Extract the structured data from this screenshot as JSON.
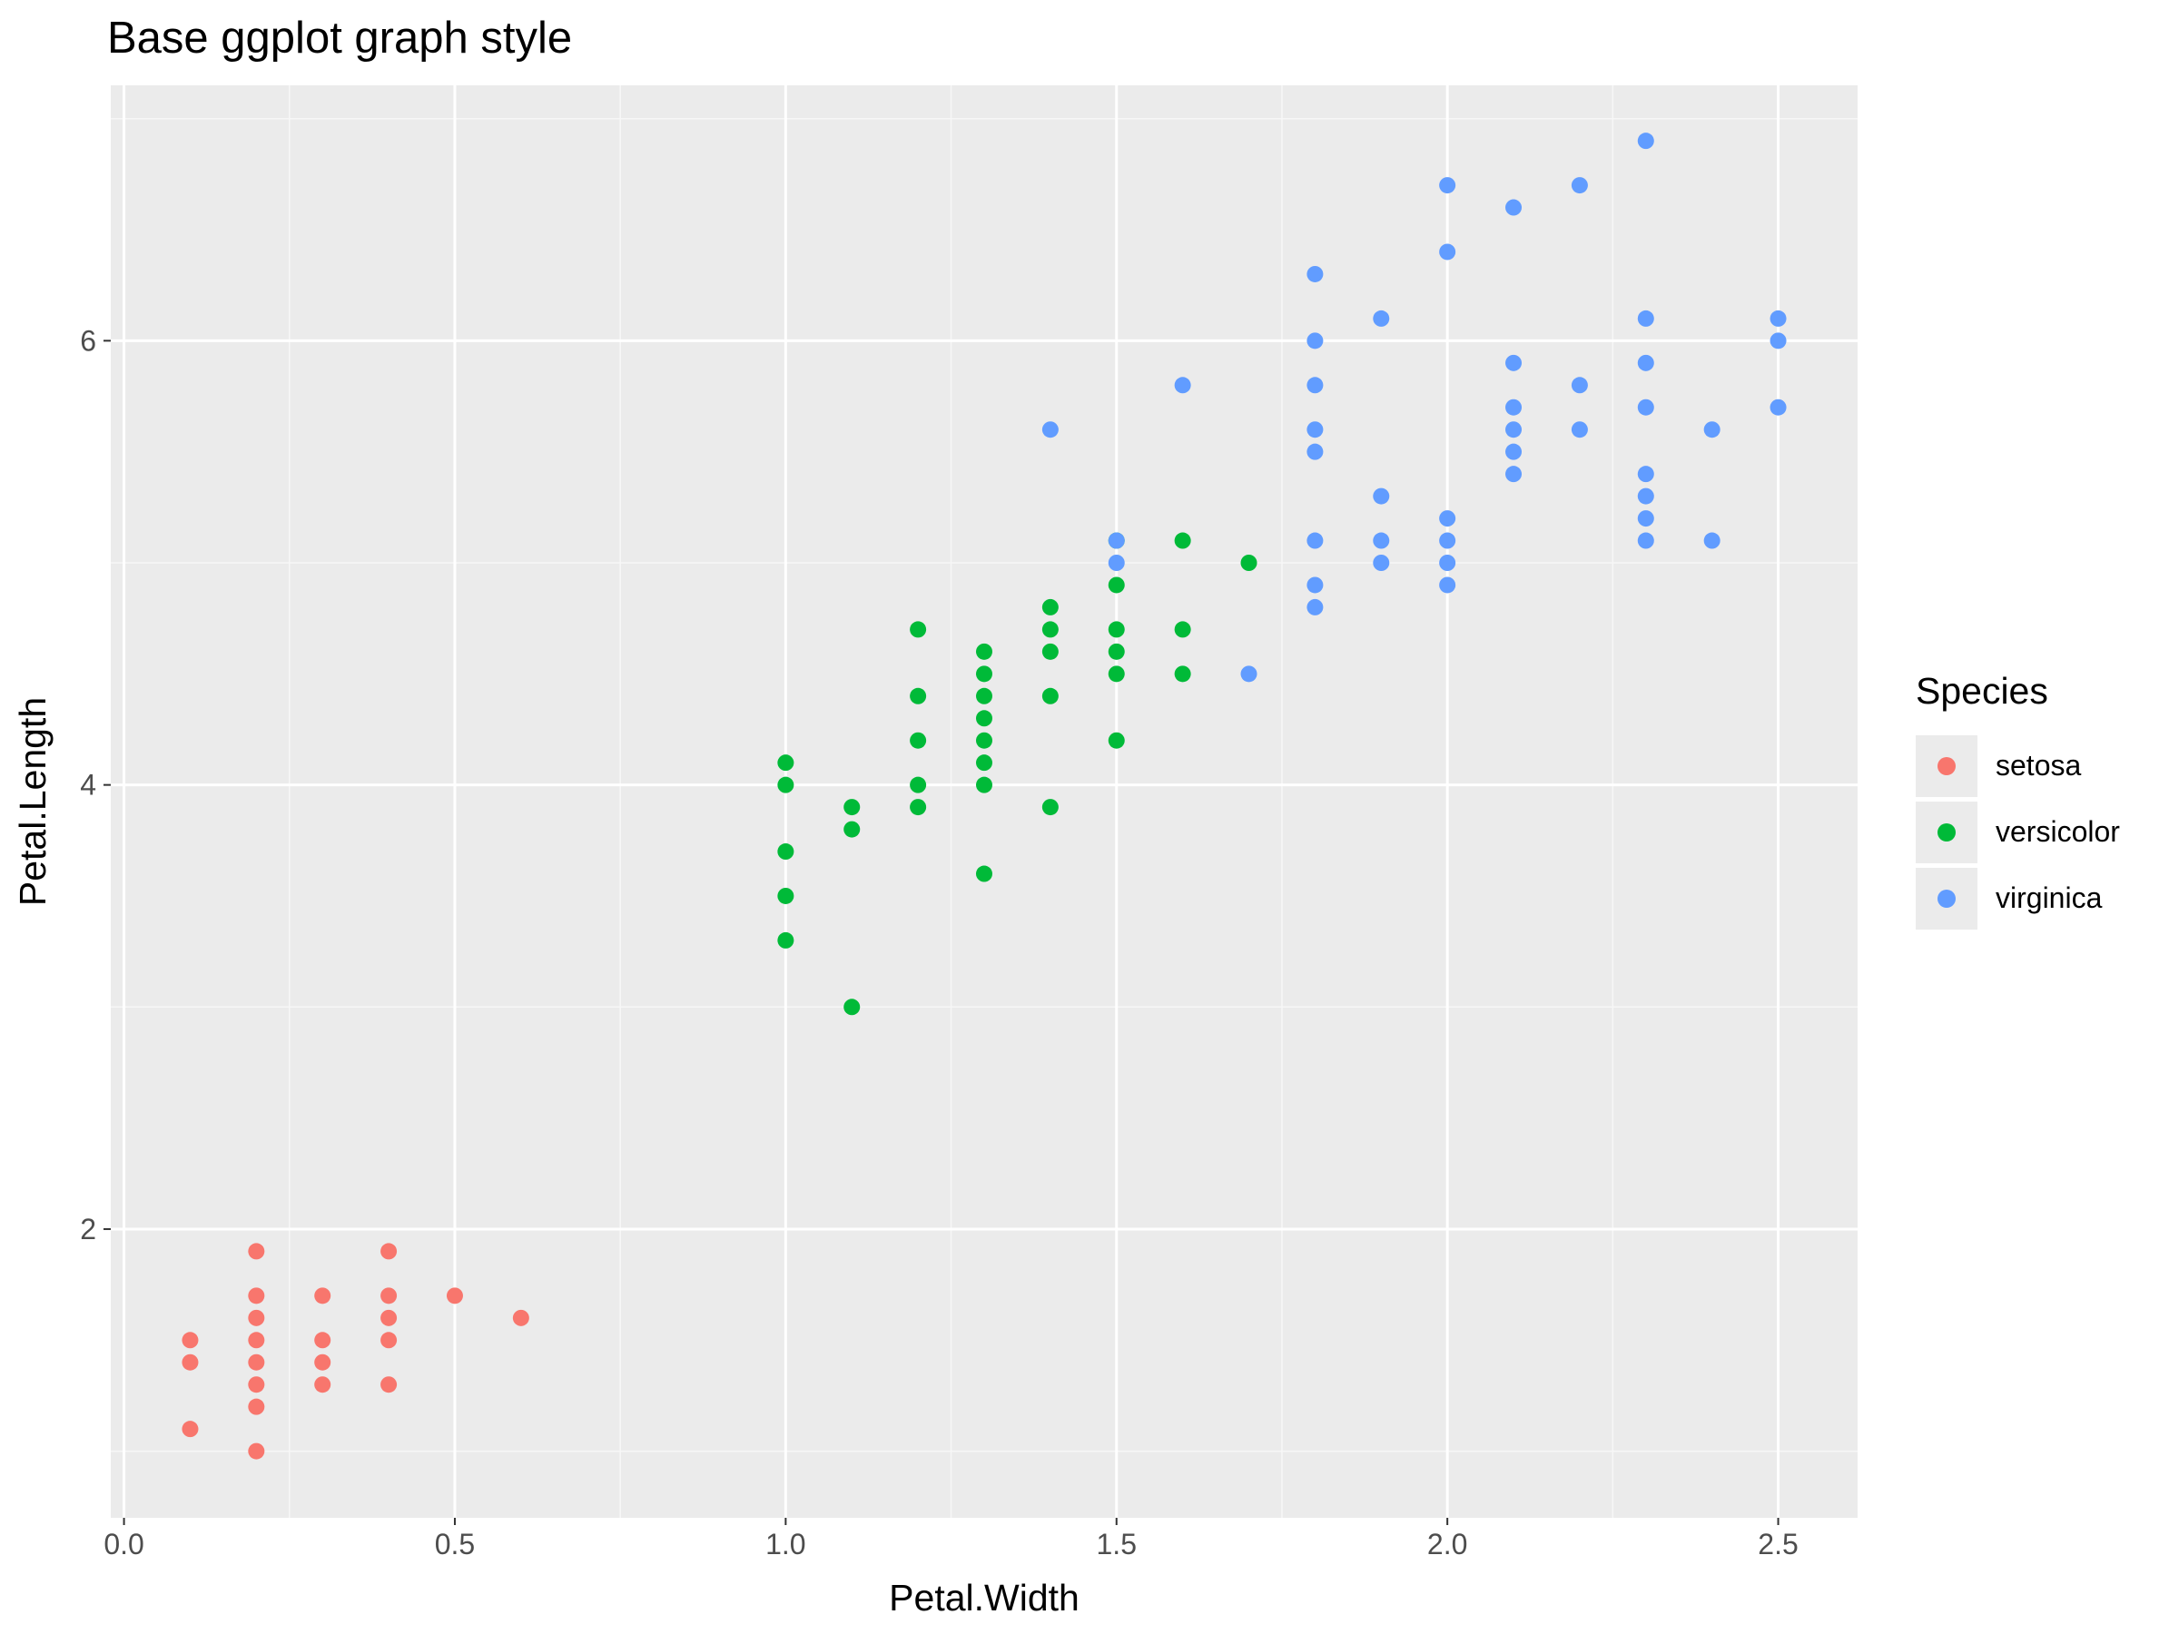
{
  "chart_data": {
    "type": "scatter",
    "title": "Base ggplot graph style",
    "xlabel": "Petal.Width",
    "ylabel": "Petal.Length",
    "xlim": [
      -0.02,
      2.62
    ],
    "ylim": [
      0.7,
      7.15
    ],
    "x_ticks": [
      "0.0",
      "0.5",
      "1.0",
      "1.5",
      "2.0",
      "2.5"
    ],
    "y_ticks": [
      "2",
      "4",
      "6"
    ],
    "grid": true,
    "legend": {
      "title": "Species",
      "position": "right"
    },
    "series": [
      {
        "name": "setosa",
        "color": "#F8766D",
        "points": [
          [
            0.1,
            1.5
          ],
          [
            0.1,
            1.4
          ],
          [
            0.1,
            1.1
          ],
          [
            0.2,
            1.9
          ],
          [
            0.2,
            1.7
          ],
          [
            0.2,
            1.6
          ],
          [
            0.2,
            1.5
          ],
          [
            0.2,
            1.4
          ],
          [
            0.2,
            1.3
          ],
          [
            0.2,
            1.2
          ],
          [
            0.2,
            1.0
          ],
          [
            0.3,
            1.7
          ],
          [
            0.3,
            1.5
          ],
          [
            0.3,
            1.4
          ],
          [
            0.3,
            1.3
          ],
          [
            0.4,
            1.9
          ],
          [
            0.4,
            1.7
          ],
          [
            0.4,
            1.6
          ],
          [
            0.4,
            1.5
          ],
          [
            0.4,
            1.3
          ],
          [
            0.5,
            1.7
          ],
          [
            0.6,
            1.6
          ]
        ]
      },
      {
        "name": "versicolor",
        "color": "#00BA38",
        "points": [
          [
            1.0,
            4.1
          ],
          [
            1.0,
            4.0
          ],
          [
            1.0,
            3.7
          ],
          [
            1.0,
            3.5
          ],
          [
            1.0,
            3.3
          ],
          [
            1.1,
            3.9
          ],
          [
            1.1,
            3.8
          ],
          [
            1.1,
            3.0
          ],
          [
            1.2,
            4.7
          ],
          [
            1.2,
            4.4
          ],
          [
            1.2,
            4.2
          ],
          [
            1.2,
            4.0
          ],
          [
            1.2,
            3.9
          ],
          [
            1.3,
            4.6
          ],
          [
            1.3,
            4.5
          ],
          [
            1.3,
            4.4
          ],
          [
            1.3,
            4.3
          ],
          [
            1.3,
            4.2
          ],
          [
            1.3,
            4.1
          ],
          [
            1.3,
            4.0
          ],
          [
            1.3,
            3.6
          ],
          [
            1.4,
            4.8
          ],
          [
            1.4,
            4.7
          ],
          [
            1.4,
            4.6
          ],
          [
            1.4,
            4.4
          ],
          [
            1.4,
            3.9
          ],
          [
            1.5,
            5.1
          ],
          [
            1.5,
            4.9
          ],
          [
            1.5,
            4.7
          ],
          [
            1.5,
            4.6
          ],
          [
            1.5,
            4.5
          ],
          [
            1.5,
            4.2
          ],
          [
            1.6,
            5.1
          ],
          [
            1.6,
            4.7
          ],
          [
            1.6,
            4.5
          ],
          [
            1.7,
            5.0
          ]
        ]
      },
      {
        "name": "virginica",
        "color": "#619CFF",
        "points": [
          [
            1.4,
            5.6
          ],
          [
            1.5,
            5.1
          ],
          [
            1.5,
            5.0
          ],
          [
            1.6,
            5.8
          ],
          [
            1.7,
            4.5
          ],
          [
            1.8,
            6.3
          ],
          [
            1.8,
            6.0
          ],
          [
            1.8,
            5.8
          ],
          [
            1.8,
            5.6
          ],
          [
            1.8,
            5.5
          ],
          [
            1.8,
            5.1
          ],
          [
            1.8,
            4.9
          ],
          [
            1.8,
            4.8
          ],
          [
            1.9,
            6.1
          ],
          [
            1.9,
            5.3
          ],
          [
            1.9,
            5.1
          ],
          [
            1.9,
            5.0
          ],
          [
            2.0,
            6.7
          ],
          [
            2.0,
            6.4
          ],
          [
            2.0,
            5.2
          ],
          [
            2.0,
            5.1
          ],
          [
            2.0,
            5.0
          ],
          [
            2.0,
            4.9
          ],
          [
            2.1,
            6.6
          ],
          [
            2.1,
            5.9
          ],
          [
            2.1,
            5.7
          ],
          [
            2.1,
            5.6
          ],
          [
            2.1,
            5.5
          ],
          [
            2.1,
            5.4
          ],
          [
            2.2,
            6.7
          ],
          [
            2.2,
            5.8
          ],
          [
            2.2,
            5.6
          ],
          [
            2.3,
            6.9
          ],
          [
            2.3,
            6.1
          ],
          [
            2.3,
            5.9
          ],
          [
            2.3,
            5.7
          ],
          [
            2.3,
            5.4
          ],
          [
            2.3,
            5.3
          ],
          [
            2.3,
            5.2
          ],
          [
            2.3,
            5.1
          ],
          [
            2.4,
            5.6
          ],
          [
            2.4,
            5.1
          ],
          [
            2.5,
            6.1
          ],
          [
            2.5,
            6.0
          ],
          [
            2.5,
            5.7
          ]
        ]
      }
    ]
  }
}
